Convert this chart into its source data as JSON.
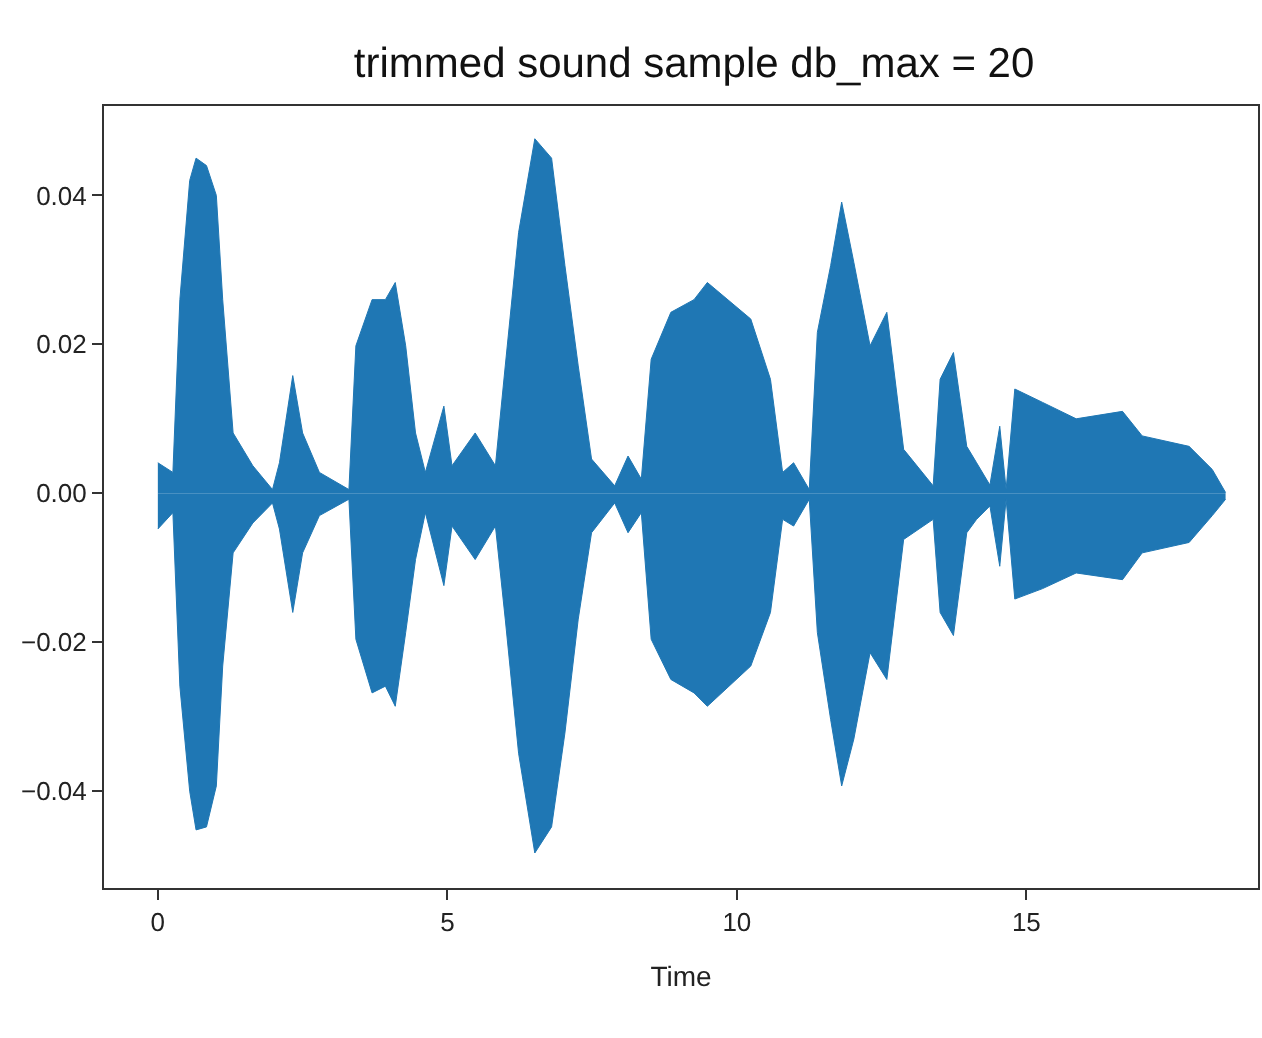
{
  "chart_data": {
    "type": "area",
    "title": "trimmed sound sample db_max = 20",
    "xlabel": "Time",
    "x": [
      0.0,
      0.26,
      0.38,
      0.55,
      0.66,
      0.84,
      1.01,
      1.12,
      1.3,
      1.64,
      1.98,
      2.1,
      2.33,
      2.5,
      2.79,
      3.3,
      3.42,
      3.7,
      3.93,
      4.1,
      4.28,
      4.45,
      4.62,
      4.94,
      5.08,
      5.48,
      5.83,
      6.0,
      6.23,
      6.51,
      6.8,
      7.03,
      7.26,
      7.49,
      7.89,
      8.12,
      8.35,
      8.52,
      8.86,
      9.26,
      9.49,
      10.24,
      10.58,
      10.79,
      10.98,
      11.25,
      11.39,
      11.62,
      11.81,
      12.02,
      12.3,
      12.59,
      12.88,
      13.39,
      13.51,
      13.74,
      13.97,
      14.14,
      14.37,
      14.54,
      14.65,
      14.8,
      15.28,
      15.86,
      16.66,
      17.0,
      17.81,
      18.21,
      18.44
    ],
    "series": [
      {
        "color": "#1f77b4",
        "values": [
          0.0041,
          0.0028,
          0.026,
          0.042,
          0.045,
          0.044,
          0.04,
          0.026,
          0.0081,
          0.0037,
          0.0005,
          0.0041,
          0.0158,
          0.0081,
          0.0028,
          0.0005,
          0.0198,
          0.026,
          0.026,
          0.0283,
          0.0198,
          0.0081,
          0.0028,
          0.0117,
          0.0037,
          0.0081,
          0.0037,
          0.0171,
          0.035,
          0.0476,
          0.045,
          0.0306,
          0.0171,
          0.0046,
          0.001,
          0.005,
          0.0019,
          0.018,
          0.0243,
          0.026,
          0.0283,
          0.0234,
          0.0153,
          0.0028,
          0.0041,
          0.0005,
          0.0216,
          0.0306,
          0.0391,
          0.031,
          0.0198,
          0.0243,
          0.0059,
          0.001,
          0.0153,
          0.0189,
          0.0063,
          0.0041,
          0.0011,
          0.009,
          0.0005,
          0.014,
          0.0122,
          0.01,
          0.011,
          0.0077,
          0.0063,
          0.0032,
          0.0001
        ]
      },
      {
        "color": "#1f77b4",
        "values": [
          -0.0048,
          -0.0026,
          -0.0259,
          -0.04,
          -0.0452,
          -0.0448,
          -0.0393,
          -0.0232,
          -0.008,
          -0.004,
          -0.0013,
          -0.0048,
          -0.016,
          -0.008,
          -0.003,
          -0.0008,
          -0.0196,
          -0.0268,
          -0.0259,
          -0.0286,
          -0.0187,
          -0.0089,
          -0.0026,
          -0.0124,
          -0.0044,
          -0.0089,
          -0.0044,
          -0.0169,
          -0.0349,
          -0.0483,
          -0.0448,
          -0.0322,
          -0.0169,
          -0.0053,
          -0.0013,
          -0.0053,
          -0.0026,
          -0.0196,
          -0.025,
          -0.0268,
          -0.0286,
          -0.0232,
          -0.016,
          -0.0035,
          -0.0044,
          -0.0008,
          -0.0187,
          -0.0304,
          -0.0393,
          -0.033,
          -0.0214,
          -0.025,
          -0.0062,
          -0.0035,
          -0.016,
          -0.0191,
          -0.0053,
          -0.0035,
          -0.0017,
          -0.0098,
          -0.0008,
          -0.0142,
          -0.0128,
          -0.0107,
          -0.0116,
          -0.008,
          -0.0066,
          -0.003,
          -0.0008
        ]
      }
    ],
    "xlim": [
      -0.93,
      19.0
    ],
    "xticks": [
      0,
      5,
      10,
      15
    ],
    "ylim": [
      -0.053,
      0.052
    ],
    "yticks": [
      {
        "value": -0.04,
        "label": "−0.04"
      },
      {
        "value": -0.02,
        "label": "−0.02"
      },
      {
        "value": 0,
        "label": "0.00"
      },
      {
        "value": 0.02,
        "label": "0.02"
      },
      {
        "value": 0.04,
        "label": "0.04"
      }
    ],
    "marker": "none"
  }
}
